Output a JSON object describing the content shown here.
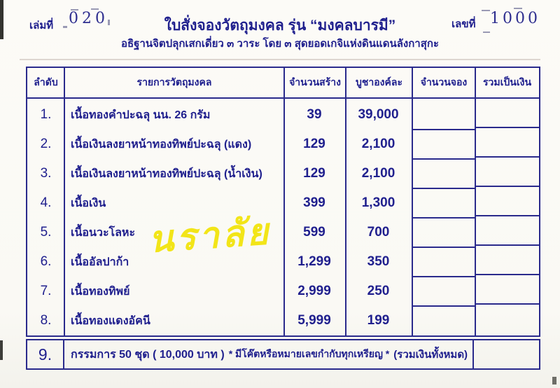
{
  "doc": {
    "book_label": "เล่มที่",
    "book_number": "020",
    "number_label": "เลขที่",
    "number_value": "1000",
    "title": "ใบสั่งจองวัตถุมงคล รุ่น “มงคลบารมี”",
    "subtitle": "อธิฐานจิตปลุกเสกเดี่ยว ๓ วาระ โดย ๓  สุดยอดเกจิแห่งดินแดนลังกาสุกะ",
    "watermark": "นราลัย"
  },
  "table": {
    "headers": [
      "ลำดับ",
      "รายการวัตถุมงคล",
      "จำนวนสร้าง",
      "บูชาองค์ละ",
      "จำนวนจอง",
      "รวมเป็นเงิน"
    ],
    "rows": [
      {
        "no": "1.",
        "item": "เนื้อทองคำปะฉลุ นน. 26 กรัม",
        "made": "39",
        "price": "39,000",
        "reserved": "",
        "total": ""
      },
      {
        "no": "2.",
        "item": "เนื้อเงินลงยาหน้าทองทิพย์ปะฉลุ (แดง)",
        "made": "129",
        "price": "2,100",
        "reserved": "",
        "total": ""
      },
      {
        "no": "3.",
        "item": "เนื้อเงินลงยาหน้าทองทิพย์ปะฉลุ (น้ำเงิน)",
        "made": "129",
        "price": "2,100",
        "reserved": "",
        "total": ""
      },
      {
        "no": "4.",
        "item": "เนื้อเงิน",
        "made": "399",
        "price": "1,300",
        "reserved": "",
        "total": ""
      },
      {
        "no": "5.",
        "item": "เนื้อนวะโลหะ",
        "made": "599",
        "price": "700",
        "reserved": "",
        "total": ""
      },
      {
        "no": "6.",
        "item": "เนื้ออัลปาก้า",
        "made": "1,299",
        "price": "350",
        "reserved": "",
        "total": ""
      },
      {
        "no": "7.",
        "item": "เนื้อทองทิพย์",
        "made": "2,999",
        "price": "250",
        "reserved": "",
        "total": ""
      },
      {
        "no": "8.",
        "item": "เนื้อทองแดงอัคนี",
        "made": "5,999",
        "price": "199",
        "reserved": "",
        "total": ""
      }
    ],
    "footer": {
      "no": "9.",
      "text_bold": "กรรมการ 50 ชุด  ( 10,000 บาท )",
      "text_mid": "* มีโค๊ตหรือหมายเลขกำกับทุกเหรียญ *",
      "text_end": "(รวมเงินทั้งหมด)",
      "total": ""
    }
  },
  "colors": {
    "ink": "#20208e",
    "border": "#2a2a8c",
    "watermark_yellow": "#f2e40d"
  }
}
